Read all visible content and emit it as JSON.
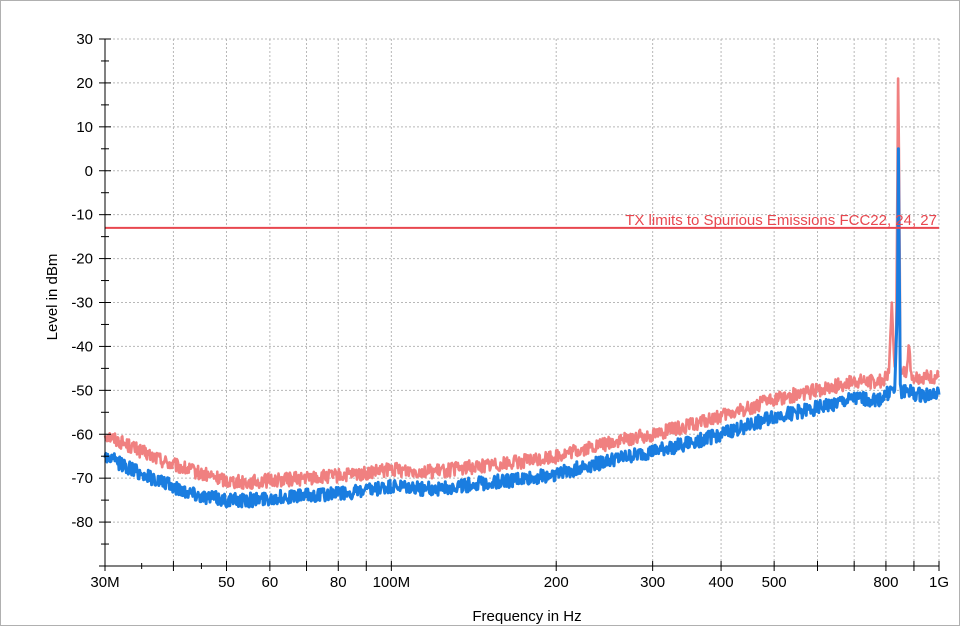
{
  "chart_data": {
    "type": "line",
    "title": "",
    "xlabel": "Frequency in Hz",
    "ylabel": "Level in dBm",
    "x_scale": "log",
    "xlim": [
      30000000,
      1000000000
    ],
    "ylim": [
      -90,
      30
    ],
    "grid": true,
    "x_ticks": [
      {
        "value": 30000000,
        "label": "30M"
      },
      {
        "value": 50000000,
        "label": "50"
      },
      {
        "value": 60000000,
        "label": "60"
      },
      {
        "value": 80000000,
        "label": "80"
      },
      {
        "value": 100000000,
        "label": "100M"
      },
      {
        "value": 200000000,
        "label": "200"
      },
      {
        "value": 300000000,
        "label": "300"
      },
      {
        "value": 400000000,
        "label": "400"
      },
      {
        "value": 500000000,
        "label": "500"
      },
      {
        "value": 800000000,
        "label": "800"
      },
      {
        "value": 1000000000,
        "label": "1G"
      }
    ],
    "x_minor_ticks": [
      40000000,
      70000000,
      90000000,
      600000000,
      700000000,
      900000000
    ],
    "y_ticks": [
      30,
      20,
      10,
      0,
      -10,
      -20,
      -30,
      -40,
      -50,
      -60,
      -70,
      -80
    ],
    "limit_line": {
      "label": "TX limits to Spurious Emissions FCC22, 24, 27",
      "value": -13,
      "color": "#e8474f"
    },
    "series": [
      {
        "color": "#f08080",
        "x": [
          30000000,
          35000000,
          40000000,
          45000000,
          50000000,
          55000000,
          60000000,
          70000000,
          80000000,
          90000000,
          100000000,
          120000000,
          150000000,
          180000000,
          200000000,
          250000000,
          300000000,
          350000000,
          400000000,
          450000000,
          500000000,
          600000000,
          700000000,
          750000000,
          780000000,
          800000000,
          810000000,
          820000000,
          830000000,
          835000000,
          840000000,
          842000000,
          845000000,
          848000000,
          850000000,
          855000000,
          860000000,
          870000000,
          880000000,
          890000000,
          900000000,
          950000000,
          1000000000
        ],
        "y": [
          -60,
          -64,
          -67,
          -69,
          -70.5,
          -71,
          -70.5,
          -70,
          -69.5,
          -69,
          -68,
          -68.5,
          -67,
          -66,
          -65,
          -62,
          -60,
          -58,
          -56,
          -54,
          -52,
          -50,
          -48,
          -48,
          -48,
          -47,
          -46,
          -30,
          -46,
          -40,
          0,
          21,
          5,
          -23,
          -43,
          -47,
          -46,
          -46,
          -40,
          -46,
          -47,
          -47,
          -47
        ]
      },
      {
        "color": "#1a7de0",
        "x": [
          30000000,
          35000000,
          40000000,
          45000000,
          50000000,
          55000000,
          60000000,
          70000000,
          80000000,
          90000000,
          100000000,
          120000000,
          150000000,
          180000000,
          200000000,
          250000000,
          300000000,
          350000000,
          400000000,
          450000000,
          500000000,
          600000000,
          700000000,
          750000000,
          780000000,
          800000000,
          820000000,
          830000000,
          840000000,
          843000000,
          846000000,
          850000000,
          855000000,
          860000000,
          880000000,
          900000000,
          950000000,
          1000000000
        ],
        "y": [
          -65,
          -69,
          -72,
          -74,
          -75,
          -75,
          -74.5,
          -74,
          -73.5,
          -73,
          -72,
          -72.5,
          -71,
          -70,
          -69,
          -66,
          -64,
          -62,
          -60,
          -58,
          -56,
          -54,
          -52,
          -52,
          -52,
          -51,
          -50,
          -50,
          -30,
          5,
          -20,
          -50,
          -51,
          -50,
          -50,
          -51,
          -51,
          -51
        ]
      }
    ]
  }
}
